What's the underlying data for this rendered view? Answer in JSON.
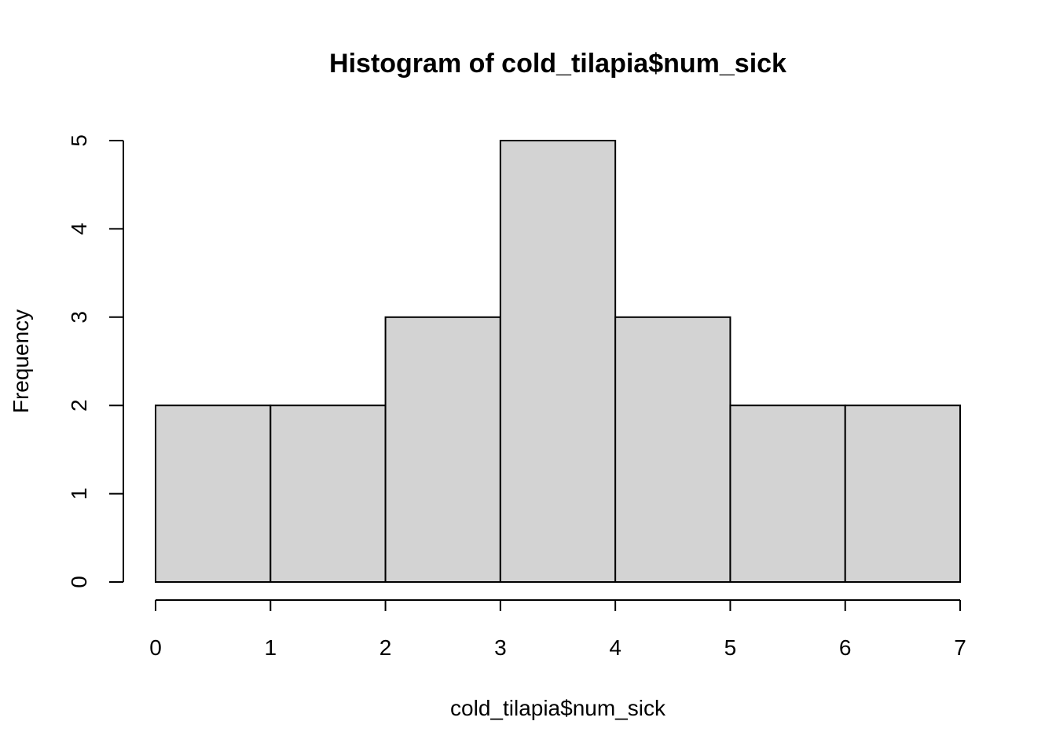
{
  "chart_data": {
    "type": "bar",
    "title": "Histogram of cold_tilapia$num_sick",
    "xlabel": "cold_tilapia$num_sick",
    "ylabel": "Frequency",
    "bin_edges": [
      0,
      1,
      2,
      3,
      4,
      5,
      6,
      7
    ],
    "values": [
      2,
      2,
      3,
      5,
      3,
      2,
      2
    ],
    "xlim": [
      0,
      7
    ],
    "ylim": [
      0,
      5
    ],
    "x_ticks": [
      "0",
      "1",
      "2",
      "3",
      "4",
      "5",
      "6",
      "7"
    ],
    "y_ticks": [
      "0",
      "1",
      "2",
      "3",
      "4",
      "5"
    ],
    "grid": false,
    "bar_color": "#d3d3d3",
    "edge_color": "#000000"
  }
}
